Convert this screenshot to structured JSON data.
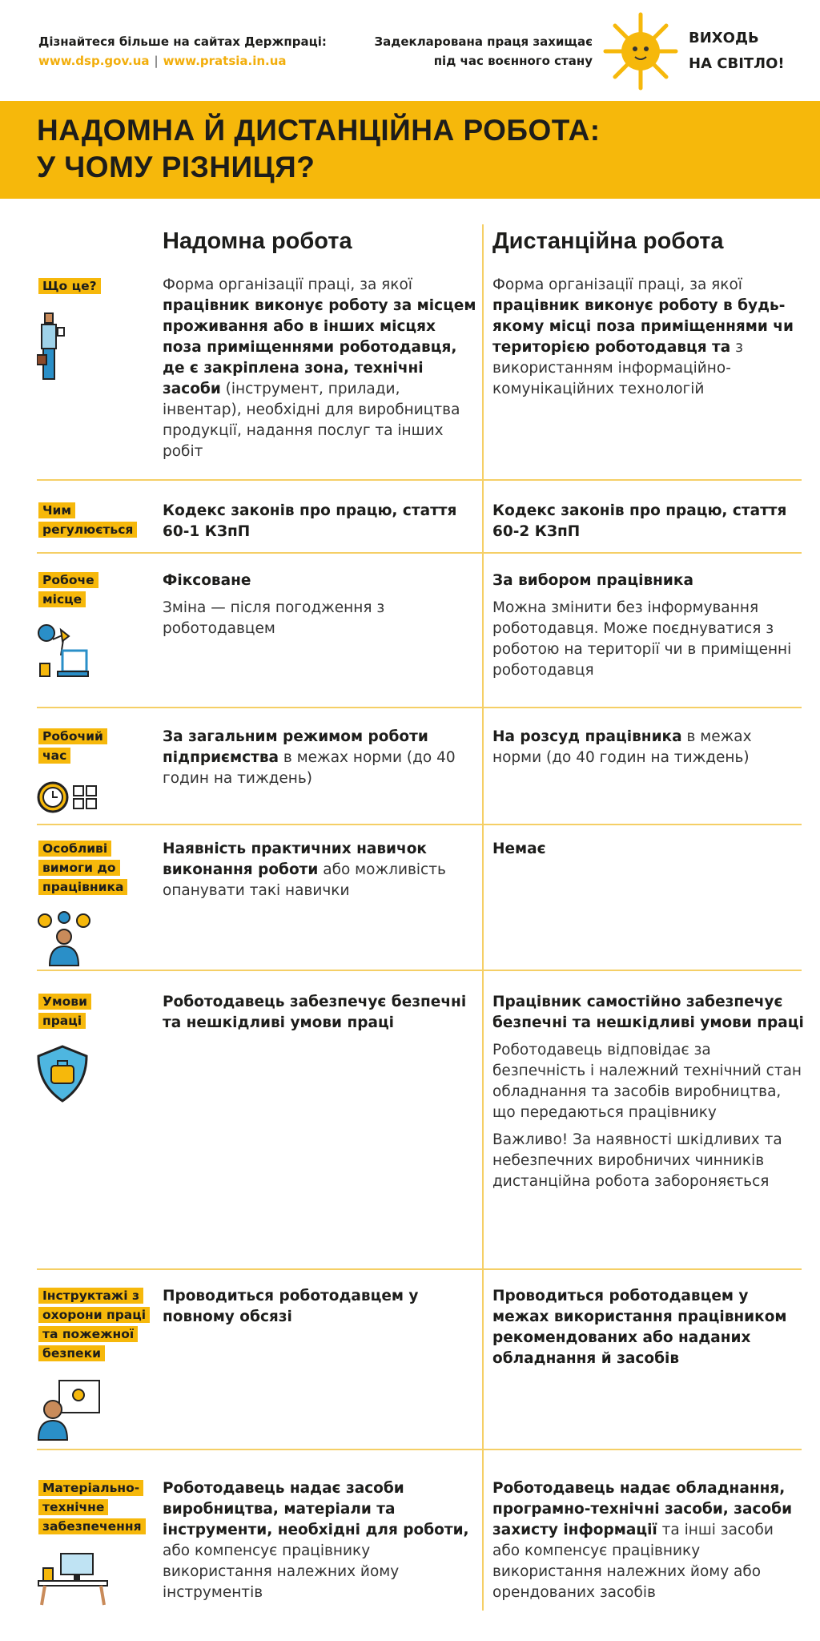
{
  "header": {
    "learn_more": "Дізнайтеся більше на сайтах Держпраці:",
    "link1": "www.dsp.gov.ua",
    "link_sep": "|",
    "link2": "www.pratsia.in.ua",
    "slogan_line1": "Задекларована праця захищає",
    "slogan_line2": "під час воєнного стану",
    "campaign_line1": "ВИХОДЬ",
    "campaign_line2": "НА СВІТЛО!"
  },
  "title": {
    "line1": "НАДОМНА Й ДИСТАНЦІЙНА РОБОТА:",
    "line2": "У ЧОМУ РІЗНИЦЯ?"
  },
  "columns": {
    "home": "Надомна робота",
    "remote": "Дистанційна робота"
  },
  "colors": {
    "accent": "#f6b80b",
    "line": "#f5cf66",
    "text": "#1d1d1b"
  },
  "rows": [
    {
      "label": [
        "Що це?"
      ],
      "icon": "worker-icon",
      "home": [
        [
          {
            "t": "Форма організації праці, за якої "
          },
          {
            "t": "працівник виконує роботу за місцем проживання або в інших місцях поза приміщеннями роботодавця, де є закріплена зона, технічні засоби",
            "b": true
          },
          {
            "t": " (інструмент, прилади, інвентар), необхідні для виробництва продукції, надання послуг та інших робіт"
          }
        ]
      ],
      "remote": [
        [
          {
            "t": "Форма організації праці, за якої "
          },
          {
            "t": "працівник виконує роботу в будь-якому місці поза приміщеннями чи територією роботодавця та",
            "b": true
          },
          {
            "t": " з використанням інформаційно-комунікаційних технологій"
          }
        ]
      ]
    },
    {
      "label": [
        "Чим",
        "регулюється"
      ],
      "icon": "",
      "home": [
        [
          {
            "t": "Кодекс законів про працю, стаття 60-1 КЗпП",
            "b": true
          }
        ]
      ],
      "remote": [
        [
          {
            "t": "Кодекс законів про працю, стаття 60-2 КЗпП",
            "b": true
          }
        ]
      ]
    },
    {
      "label": [
        "Робоче",
        "місце"
      ],
      "icon": "workplace-icon",
      "home": [
        [
          {
            "t": "Фіксоване",
            "b": true
          }
        ],
        [
          {
            "t": "Зміна — після погодження з роботодавцем"
          }
        ]
      ],
      "remote": [
        [
          {
            "t": "За вибором працівника",
            "b": true
          }
        ],
        [
          {
            "t": "Можна змінити без інформування роботодавця. Може поєднуватися з роботою на території чи в приміщенні роботодавця"
          }
        ]
      ]
    },
    {
      "label": [
        "Робочий",
        "час"
      ],
      "icon": "clock-icon",
      "home": [
        [
          {
            "t": "За загальним режимом роботи підприємства",
            "b": true
          },
          {
            "t": " в межах норми (до 40 годин на тиждень)"
          }
        ]
      ],
      "remote": [
        [
          {
            "t": "На розсуд працівника",
            "b": true
          },
          {
            "t": " в межах норми (до 40 годин на тиждень)"
          }
        ]
      ]
    },
    {
      "label": [
        "Особливі",
        "вимоги до",
        "працівника"
      ],
      "icon": "skills-icon",
      "home": [
        [
          {
            "t": "Наявність практичних навичок виконання роботи",
            "b": true
          },
          {
            "t": " або можливість опанувати такі навички"
          }
        ]
      ],
      "remote": [
        [
          {
            "t": "Немає",
            "b": true
          }
        ]
      ]
    },
    {
      "label": [
        "Умови",
        "праці"
      ],
      "icon": "shield-icon",
      "home": [
        [
          {
            "t": "Роботодавець забезпечує безпечні та нешкідливі умови праці",
            "b": true
          }
        ]
      ],
      "remote": [
        [
          {
            "t": "Працівник самостійно забезпечує безпечні та нешкідливі умови праці",
            "b": true
          }
        ],
        [
          {
            "t": "Роботодавець відповідає за безпечність і належний технічний стан обладнання та засобів виробництва, що передаються працівнику"
          }
        ],
        [
          {
            "t": "Важливо! За наявності шкідливих та небезпечних виробничих чинників дистанційна робота забороняється"
          }
        ]
      ]
    },
    {
      "label": [
        "Інструктажі з",
        "охорони праці",
        "та пожежної",
        "безпеки"
      ],
      "icon": "training-icon",
      "home": [
        [
          {
            "t": "Проводиться роботодавцем у повному обсязі",
            "b": true
          }
        ]
      ],
      "remote": [
        [
          {
            "t": "Проводиться роботодавцем у межах використання працівником рекомендованих або наданих обладнання й засобів",
            "b": true
          }
        ]
      ]
    },
    {
      "label": [
        "Матеріально-",
        "технічне",
        "забезпечення"
      ],
      "icon": "desk-icon",
      "home": [
        [
          {
            "t": "Роботодавець надає засоби виробництва, матеріали та інструменти, необхідні для роботи,",
            "b": true
          },
          {
            "t": " або компенсує працівнику використання належних йому інструментів"
          }
        ]
      ],
      "remote": [
        [
          {
            "t": "Роботодавець надає обладнання, програмно-технічні засоби, засоби захисту інформації",
            "b": true
          },
          {
            "t": " та інші засоби або компенсує працівнику використання належних йому або орендованих засобів"
          }
        ]
      ]
    }
  ]
}
